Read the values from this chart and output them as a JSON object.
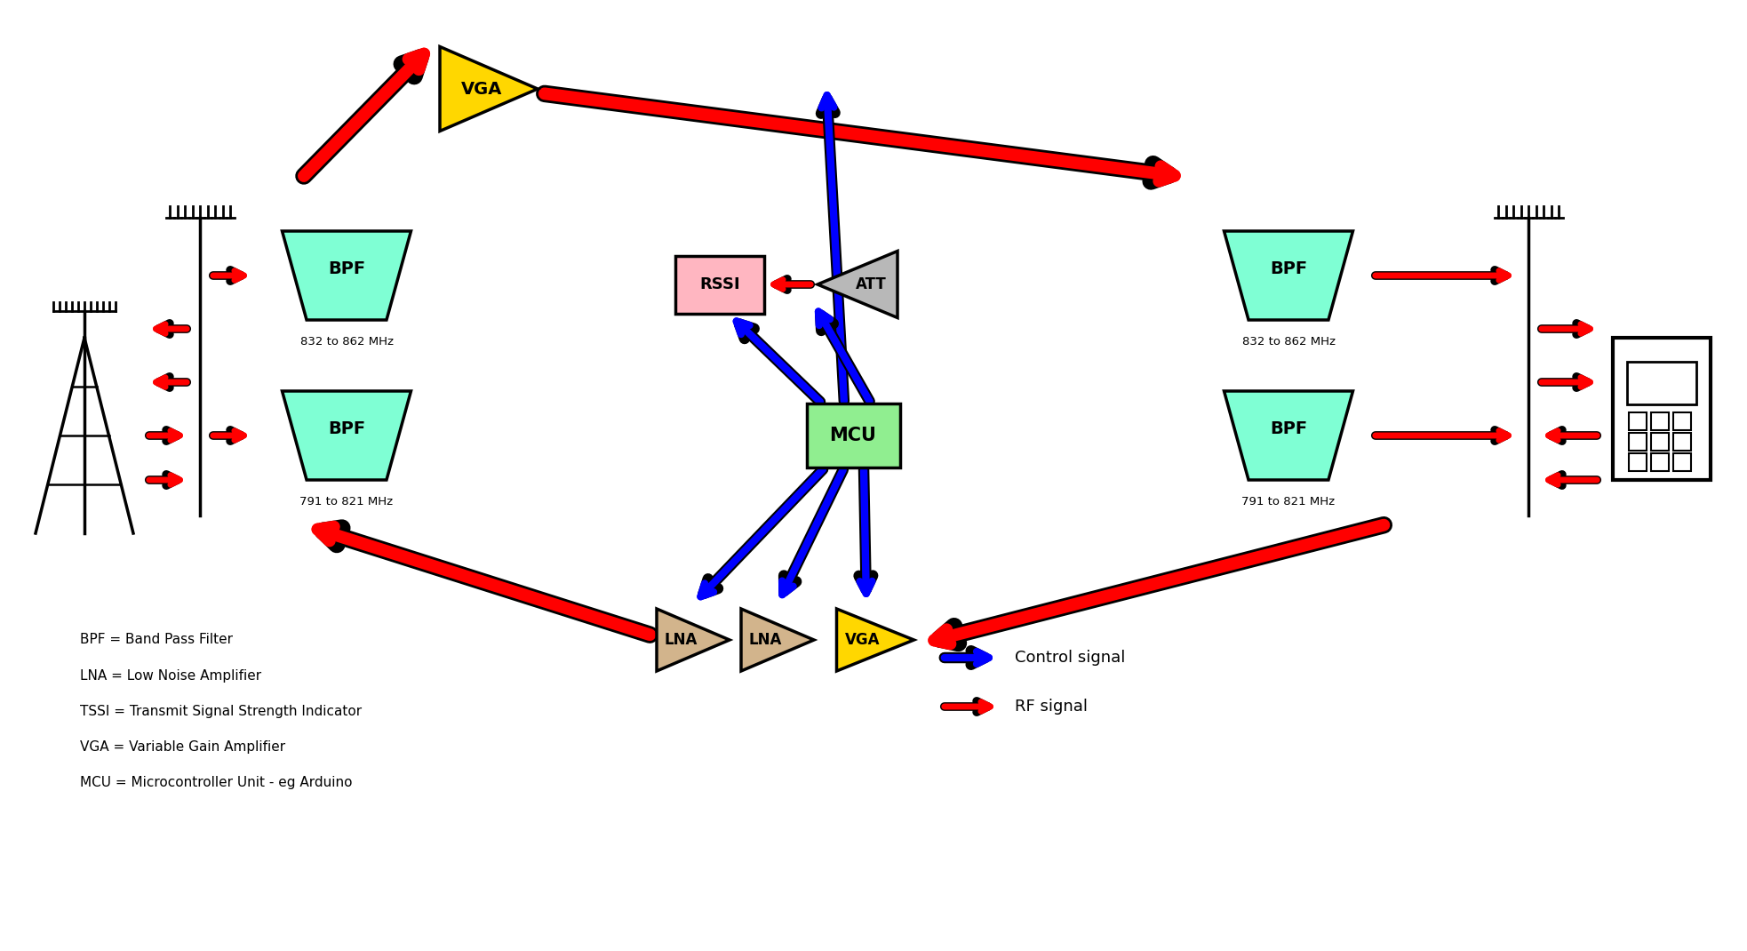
{
  "bg_color": "#ffffff",
  "bpf_fill": "#7FFFD4",
  "mcu_fill": "#90EE90",
  "rssi_fill": "#FFB6C1",
  "att_fill": "#B8B8B8",
  "vga_fill": "#FFD700",
  "lna_fill": "#D2B48C",
  "abbrevs": [
    "BPF = Band Pass Filter",
    "LNA = Low Noise Amplifier",
    "TSSI = Transmit Signal Strength Indicator",
    "VGA = Variable Gain Amplifier",
    "MCU = Microcontroller Unit - eg Arduino"
  ],
  "fig_w": 19.66,
  "fig_h": 10.7
}
